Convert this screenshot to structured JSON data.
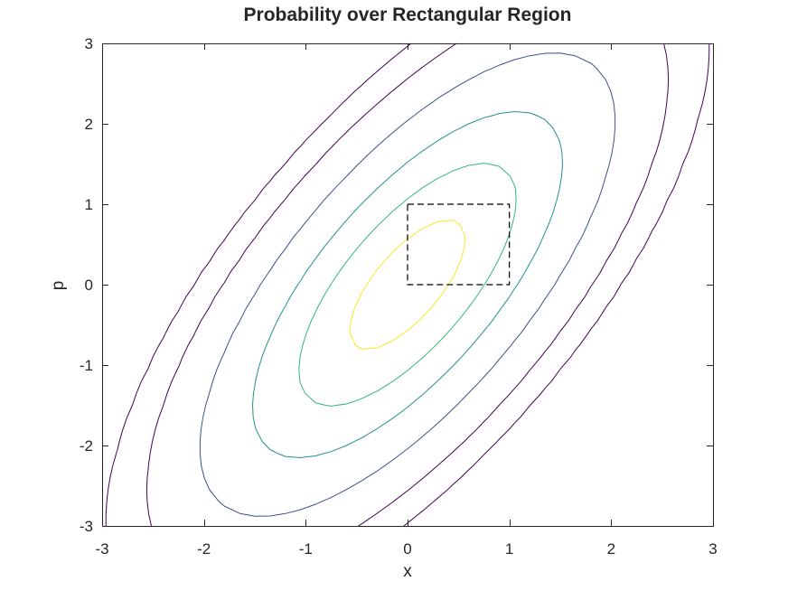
{
  "chart_data": {
    "type": "contour",
    "title": "Probability over Rectangular Region",
    "xlabel": "x",
    "ylabel": "p",
    "xlim": [
      -3,
      3
    ],
    "ylim": [
      -3,
      3
    ],
    "xticks": [
      -3,
      -2,
      -1,
      0,
      1,
      2,
      3
    ],
    "yticks": [
      -3,
      -2,
      -1,
      0,
      1,
      2,
      3
    ],
    "grid": false,
    "distribution": {
      "mean": [
        0,
        0
      ],
      "var_x": 1.0,
      "var_p": 2.0,
      "covariance": 1.0
    },
    "contour_levels": [
      0.002,
      0.006,
      0.02,
      0.05,
      0.09,
      0.135
    ],
    "contour_colors": [
      "#440154",
      "#440154",
      "#3b528b",
      "#21918c",
      "#35b779",
      "#fde725"
    ],
    "region": {
      "x": [
        0,
        1
      ],
      "p": [
        0,
        1
      ],
      "style": "dashed",
      "color": "#000000"
    }
  }
}
